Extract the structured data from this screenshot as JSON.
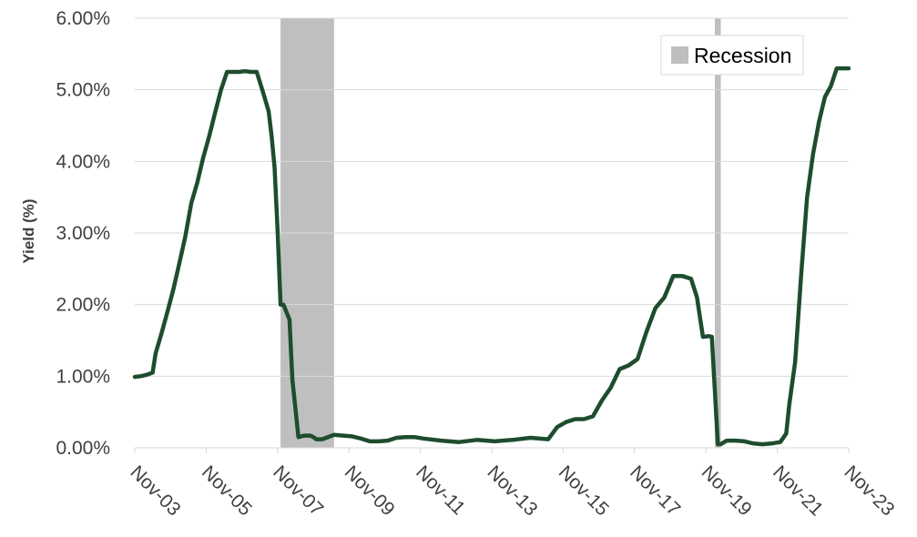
{
  "chart_data": {
    "type": "line",
    "title": "",
    "xlabel": "",
    "ylabel": "Yield (%)",
    "ylim": [
      0,
      6
    ],
    "y_ticks": [
      {
        "value": 0,
        "label": "0.00%"
      },
      {
        "value": 1,
        "label": "1.00%"
      },
      {
        "value": 2,
        "label": "2.00%"
      },
      {
        "value": 3,
        "label": "3.00%"
      },
      {
        "value": 4,
        "label": "4.00%"
      },
      {
        "value": 5,
        "label": "5.00%"
      },
      {
        "value": 6,
        "label": "6.00%"
      }
    ],
    "xlim": [
      "2003-11",
      "2023-11"
    ],
    "x_ticks": [
      {
        "value": "2003-11",
        "label": "Nov-03"
      },
      {
        "value": "2005-11",
        "label": "Nov-05"
      },
      {
        "value": "2007-11",
        "label": "Nov-07"
      },
      {
        "value": "2009-11",
        "label": "Nov-09"
      },
      {
        "value": "2011-11",
        "label": "Nov-11"
      },
      {
        "value": "2013-11",
        "label": "Nov-13"
      },
      {
        "value": "2015-11",
        "label": "Nov-15"
      },
      {
        "value": "2017-11",
        "label": "Nov-17"
      },
      {
        "value": "2019-11",
        "label": "Nov-19"
      },
      {
        "value": "2021-11",
        "label": "Nov-21"
      },
      {
        "value": "2023-11",
        "label": "Nov-23"
      }
    ],
    "grid": "horizontal",
    "legend": {
      "placement": "top-right",
      "entries": [
        {
          "name": "Recession",
          "color": "#bfbfbf"
        }
      ]
    },
    "recessions": [
      {
        "start": "2007-12",
        "end": "2009-06"
      },
      {
        "start": "2020-02",
        "end": "2020-04"
      }
    ],
    "line_color": "#1e4d2e",
    "grid_color": "#d9d9d9",
    "series": [
      {
        "x": [
          "2003-11",
          "2004-01",
          "2004-03",
          "2004-05",
          "2004-06",
          "2004-08",
          "2004-10",
          "2004-12",
          "2005-02",
          "2005-04",
          "2005-06",
          "2005-08",
          "2005-10",
          "2005-12",
          "2006-02",
          "2006-04",
          "2006-06",
          "2006-08",
          "2006-10",
          "2006-12",
          "2007-02",
          "2007-04",
          "2007-06",
          "2007-08",
          "2007-09",
          "2007-10",
          "2007-11",
          "2007-12",
          "2008-01",
          "2008-03",
          "2008-04",
          "2008-06",
          "2008-08",
          "2008-10",
          "2008-11",
          "2008-12",
          "2009-02",
          "2009-06",
          "2009-09",
          "2009-12",
          "2010-03",
          "2010-06",
          "2010-09",
          "2010-12",
          "2011-03",
          "2011-06",
          "2011-09",
          "2011-12",
          "2012-06",
          "2012-12",
          "2013-06",
          "2013-12",
          "2014-06",
          "2014-12",
          "2015-06",
          "2015-09",
          "2015-12",
          "2016-03",
          "2016-06",
          "2016-09",
          "2016-12",
          "2017-03",
          "2017-06",
          "2017-09",
          "2017-12",
          "2018-03",
          "2018-06",
          "2018-09",
          "2018-12",
          "2019-03",
          "2019-06",
          "2019-08",
          "2019-10",
          "2019-12",
          "2020-01",
          "2020-03",
          "2020-04",
          "2020-06",
          "2020-09",
          "2020-12",
          "2021-03",
          "2021-06",
          "2021-09",
          "2021-12",
          "2022-02",
          "2022-03",
          "2022-05",
          "2022-07",
          "2022-09",
          "2022-11",
          "2023-01",
          "2023-03",
          "2023-05",
          "2023-07",
          "2023-09",
          "2023-11"
        ],
        "values": [
          0.99,
          1.0,
          1.02,
          1.05,
          1.32,
          1.6,
          1.9,
          2.22,
          2.58,
          2.95,
          3.42,
          3.7,
          4.05,
          4.35,
          4.68,
          5.0,
          5.25,
          5.25,
          5.25,
          5.26,
          5.25,
          5.25,
          4.98,
          4.7,
          4.35,
          3.92,
          3.05,
          2.0,
          2.0,
          1.79,
          0.95,
          0.15,
          0.17,
          0.17,
          0.15,
          0.12,
          0.12,
          0.18,
          0.17,
          0.16,
          0.13,
          0.09,
          0.09,
          0.1,
          0.14,
          0.15,
          0.15,
          0.13,
          0.1,
          0.08,
          0.11,
          0.09,
          0.11,
          0.14,
          0.12,
          0.29,
          0.36,
          0.4,
          0.4,
          0.44,
          0.66,
          0.84,
          1.1,
          1.15,
          1.24,
          1.62,
          1.95,
          2.1,
          2.4,
          2.4,
          2.36,
          2.1,
          1.55,
          1.56,
          1.55,
          0.05,
          0.05,
          0.1,
          0.1,
          0.09,
          0.06,
          0.05,
          0.06,
          0.08,
          0.2,
          0.6,
          1.2,
          2.4,
          3.5,
          4.1,
          4.55,
          4.9,
          5.05,
          5.3,
          5.3,
          5.3
        ]
      }
    ]
  }
}
